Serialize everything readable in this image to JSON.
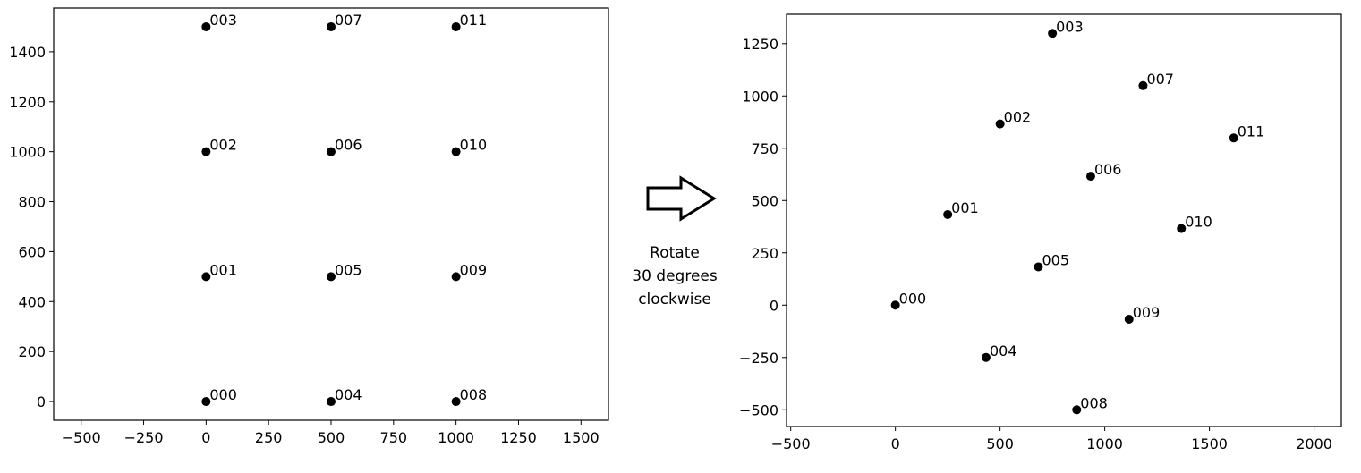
{
  "caption": {
    "line1": "Rotate",
    "line2": "30 degrees",
    "line3": "clockwise"
  },
  "arrow": {
    "icon": "right-arrow-icon",
    "color": "#000000"
  },
  "chart_data": [
    {
      "type": "scatter",
      "title": "",
      "xlabel": "",
      "ylabel": "",
      "xlim": [
        -610,
        1610
      ],
      "ylim": [
        -75,
        1575
      ],
      "xticks": [
        -500,
        -250,
        0,
        250,
        500,
        750,
        1000,
        1250,
        1500
      ],
      "yticks": [
        0,
        200,
        400,
        600,
        800,
        1000,
        1200,
        1400
      ],
      "grid": false,
      "marker_color": "#000000",
      "points": [
        {
          "label": "000",
          "x": 0,
          "y": 0
        },
        {
          "label": "001",
          "x": 0,
          "y": 500
        },
        {
          "label": "002",
          "x": 0,
          "y": 1000
        },
        {
          "label": "003",
          "x": 0,
          "y": 1500
        },
        {
          "label": "004",
          "x": 500,
          "y": 0
        },
        {
          "label": "005",
          "x": 500,
          "y": 500
        },
        {
          "label": "006",
          "x": 500,
          "y": 1000
        },
        {
          "label": "007",
          "x": 500,
          "y": 1500
        },
        {
          "label": "008",
          "x": 1000,
          "y": 0
        },
        {
          "label": "009",
          "x": 1000,
          "y": 500
        },
        {
          "label": "010",
          "x": 1000,
          "y": 1000
        },
        {
          "label": "011",
          "x": 1000,
          "y": 1500
        }
      ]
    },
    {
      "type": "scatter",
      "title": "",
      "xlabel": "",
      "ylabel": "",
      "xlim": [
        -520,
        2130
      ],
      "ylim": [
        -580,
        1390
      ],
      "xticks": [
        -500,
        0,
        500,
        1000,
        1500,
        2000
      ],
      "yticks": [
        -500,
        -250,
        0,
        250,
        500,
        750,
        1000,
        1250
      ],
      "grid": false,
      "marker_color": "#000000",
      "points": [
        {
          "label": "000",
          "x": 0,
          "y": 0
        },
        {
          "label": "001",
          "x": 250,
          "y": 433
        },
        {
          "label": "002",
          "x": 500,
          "y": 866
        },
        {
          "label": "003",
          "x": 750,
          "y": 1299
        },
        {
          "label": "004",
          "x": 433,
          "y": -250
        },
        {
          "label": "005",
          "x": 683,
          "y": 183
        },
        {
          "label": "006",
          "x": 933,
          "y": 616
        },
        {
          "label": "007",
          "x": 1183,
          "y": 1049
        },
        {
          "label": "008",
          "x": 866,
          "y": -500
        },
        {
          "label": "009",
          "x": 1116,
          "y": -67
        },
        {
          "label": "010",
          "x": 1366,
          "y": 366
        },
        {
          "label": "011",
          "x": 1616,
          "y": 799
        }
      ]
    }
  ]
}
